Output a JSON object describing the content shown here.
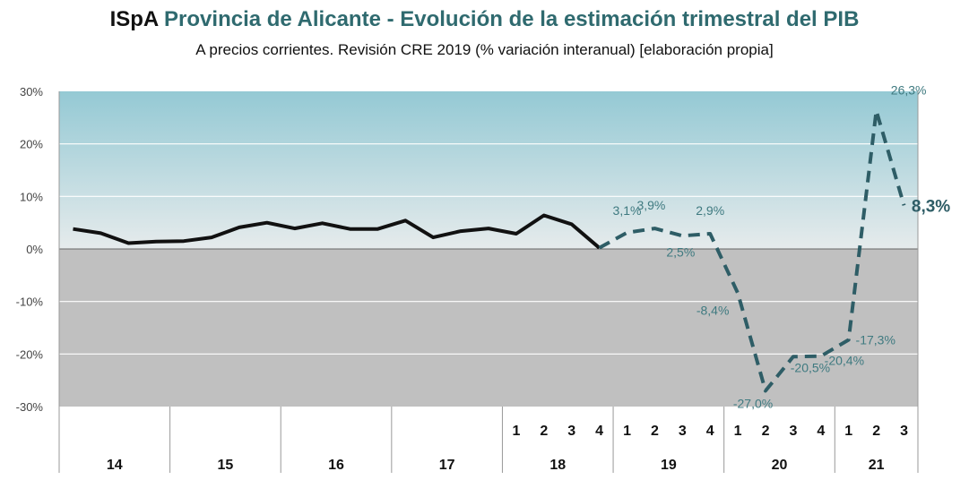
{
  "title_brand": "ISpA",
  "title_main": "Provincia de Alicante - Evolución de la estimación trimestral del PIB",
  "subtitle": "A precios corrientes. Revisión CRE 2019 (% variación interanual) [elaboración propia]",
  "chart_data": {
    "type": "line",
    "title": "ISpA Provincia de Alicante - Evolución de la estimación trimestral del PIB",
    "subtitle": "A precios corrientes. Revisión CRE 2019 (% variación interanual) [elaboración propia]",
    "ylim": [
      -30,
      30
    ],
    "y_ticks": [
      30,
      20,
      10,
      0,
      -10,
      -20,
      -30
    ],
    "y_tick_labels": [
      "30%",
      "20%",
      "10%",
      "0%",
      "-10%",
      "-20%",
      "-30%"
    ],
    "grid": true,
    "years": [
      {
        "label": "14",
        "quarters": [
          "",
          "",
          "",
          ""
        ]
      },
      {
        "label": "15",
        "quarters": [
          "",
          "",
          "",
          ""
        ]
      },
      {
        "label": "16",
        "quarters": [
          "",
          "",
          "",
          ""
        ]
      },
      {
        "label": "17",
        "quarters": [
          "",
          "",
          "",
          ""
        ]
      },
      {
        "label": "18",
        "quarters": [
          "1",
          "2",
          "3",
          "4"
        ]
      },
      {
        "label": "19",
        "quarters": [
          "1",
          "2",
          "3",
          "4"
        ]
      },
      {
        "label": "20",
        "quarters": [
          "1",
          "2",
          "3",
          "4"
        ]
      },
      {
        "label": "21",
        "quarters": [
          "1",
          "2",
          "3"
        ]
      }
    ],
    "series": [
      {
        "style": "solid",
        "color": "#111111",
        "start_index": 0,
        "values": [
          3.8,
          3.0,
          1.1,
          1.4,
          1.5,
          2.2,
          4.1,
          5.0,
          3.9,
          4.9,
          3.8,
          3.8,
          5.4,
          2.2,
          3.4,
          3.9,
          2.9,
          6.4,
          4.7,
          0.2
        ]
      },
      {
        "style": "dashed",
        "color": "#2e5d66",
        "start_index": 19,
        "values": [
          0.2,
          3.1,
          3.9,
          2.5,
          2.9,
          -8.4,
          -27.0,
          -20.5,
          -20.4,
          -17.3,
          26.3,
          8.3
        ]
      }
    ],
    "data_labels": [
      {
        "index": 20,
        "value": 3.1,
        "text": "3,1%"
      },
      {
        "index": 21,
        "value": 3.9,
        "text": "3,9%"
      },
      {
        "index": 22,
        "value": 2.5,
        "text": "2,5%"
      },
      {
        "index": 23,
        "value": 2.9,
        "text": "2,9%"
      },
      {
        "index": 24,
        "value": -8.4,
        "text": "-8,4%"
      },
      {
        "index": 25,
        "value": -27.0,
        "text": "-27,0%"
      },
      {
        "index": 26,
        "value": -20.5,
        "text": "-20,5%"
      },
      {
        "index": 27,
        "value": -20.4,
        "text": "-20,4%"
      },
      {
        "index": 28,
        "value": -17.3,
        "text": "-17,3%"
      },
      {
        "index": 29,
        "value": 26.3,
        "text": "26,3%"
      },
      {
        "index": 30,
        "value": 8.3,
        "text": "8,3%"
      }
    ],
    "colors": {
      "positive_area_top": "#94c9d4",
      "positive_area_bottom": "#e6ebec",
      "negative_area": "#c0c0c0",
      "gridline": "#ffffff",
      "zero_line": "#666666",
      "label_color": "#3f7a80",
      "last_label_color": "#2e5d66"
    }
  }
}
